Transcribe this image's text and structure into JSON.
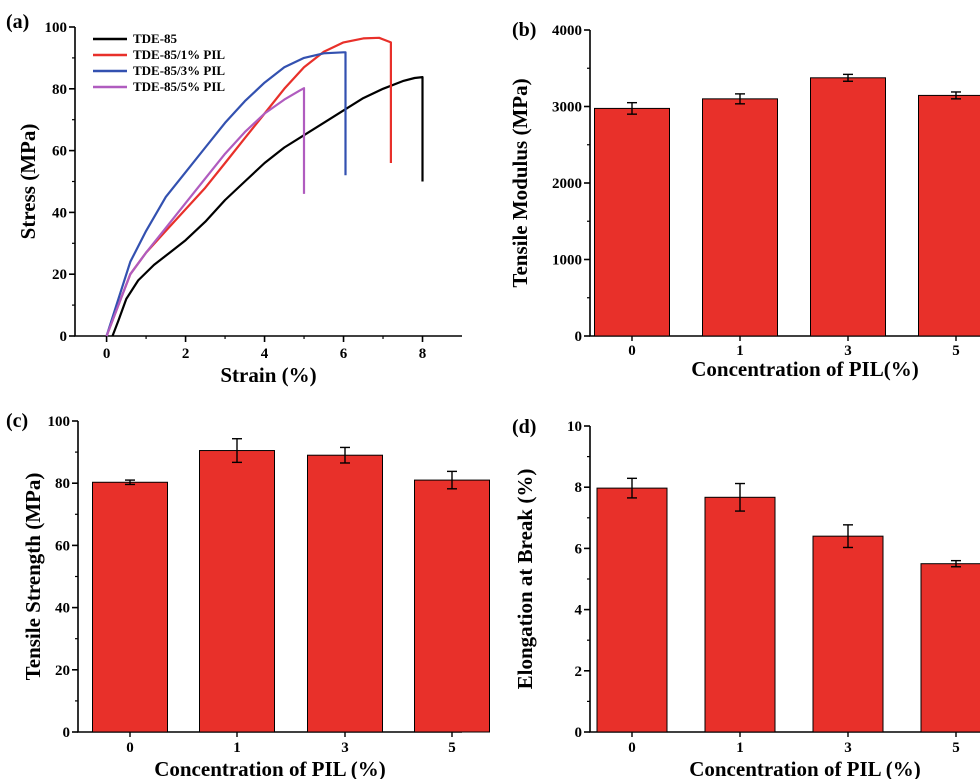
{
  "chart_data": [
    {
      "panel": "(a)",
      "type": "line",
      "xlabel": "Strain (%)",
      "ylabel": "Stress (MPa)",
      "xlim": [
        -0.8,
        9
      ],
      "ylim": [
        0,
        100
      ],
      "xticks": [
        0,
        2,
        4,
        6,
        8
      ],
      "yticks": [
        0,
        20,
        40,
        60,
        80,
        100
      ],
      "legend_position": "top-left",
      "series": [
        {
          "name": "TDE-85",
          "color": "#000000",
          "points": [
            [
              0.15,
              0
            ],
            [
              0.3,
              5
            ],
            [
              0.5,
              12
            ],
            [
              0.8,
              18
            ],
            [
              1.2,
              23
            ],
            [
              1.6,
              27
            ],
            [
              2,
              31
            ],
            [
              2.5,
              37
            ],
            [
              3,
              44
            ],
            [
              3.5,
              50
            ],
            [
              4,
              56
            ],
            [
              4.5,
              61
            ],
            [
              5,
              65
            ],
            [
              5.5,
              69
            ],
            [
              6,
              73
            ],
            [
              6.5,
              77
            ],
            [
              7,
              80
            ],
            [
              7.5,
              82.5
            ],
            [
              7.8,
              83.5
            ],
            [
              8,
              83.8
            ],
            [
              8,
              50
            ]
          ]
        },
        {
          "name": "TDE-85/1% PIL",
          "color": "#e8302a",
          "points": [
            [
              0,
              0
            ],
            [
              0.3,
              10
            ],
            [
              0.6,
              20
            ],
            [
              1,
              27
            ],
            [
              1.5,
              34
            ],
            [
              2,
              41
            ],
            [
              2.5,
              48
            ],
            [
              3,
              56
            ],
            [
              3.5,
              64
            ],
            [
              4,
              72
            ],
            [
              4.5,
              80
            ],
            [
              5,
              87
            ],
            [
              5.5,
              92
            ],
            [
              6,
              95
            ],
            [
              6.5,
              96.3
            ],
            [
              6.9,
              96.5
            ],
            [
              7.1,
              95.5
            ],
            [
              7.2,
              95
            ],
            [
              7.2,
              56
            ]
          ]
        },
        {
          "name": "TDE-85/3% PIL",
          "color": "#3351b0",
          "points": [
            [
              0,
              0
            ],
            [
              0.3,
              12
            ],
            [
              0.6,
              24
            ],
            [
              1,
              34
            ],
            [
              1.5,
              45
            ],
            [
              2,
              53
            ],
            [
              2.5,
              61
            ],
            [
              3,
              69
            ],
            [
              3.5,
              76
            ],
            [
              4,
              82
            ],
            [
              4.5,
              87
            ],
            [
              5,
              90
            ],
            [
              5.5,
              91.5
            ],
            [
              6,
              91.8
            ],
            [
              6.05,
              91.8
            ],
            [
              6.05,
              52
            ]
          ]
        },
        {
          "name": "TDE-85/5% PIL",
          "color": "#b05cbf",
          "points": [
            [
              0,
              0
            ],
            [
              0.3,
              10
            ],
            [
              0.6,
              20
            ],
            [
              1,
              27
            ],
            [
              1.5,
              35
            ],
            [
              2,
              43
            ],
            [
              2.5,
              51
            ],
            [
              3,
              59
            ],
            [
              3.5,
              66
            ],
            [
              4,
              72
            ],
            [
              4.5,
              76.5
            ],
            [
              4.9,
              79.5
            ],
            [
              5,
              80.2
            ],
            [
              5,
              46
            ]
          ]
        }
      ]
    },
    {
      "panel": "(b)",
      "type": "bar",
      "xlabel": "Concentration of PIL(%)",
      "ylabel": "Tensile Modulus (MPa)",
      "categories": [
        "0",
        "1",
        "3",
        "5"
      ],
      "values": [
        2975,
        3100,
        3375,
        3145
      ],
      "errors": [
        75,
        65,
        45,
        45
      ],
      "ylim": [
        0,
        4000
      ],
      "yticks": [
        0,
        1000,
        2000,
        3000,
        4000
      ],
      "bar_color": "#e8302a"
    },
    {
      "panel": "(c)",
      "type": "bar",
      "xlabel": "Concentration of PIL (%)",
      "ylabel": "Tensile Strength (MPa)",
      "categories": [
        "0",
        "1",
        "3",
        "5"
      ],
      "values": [
        80.3,
        90.5,
        89,
        81
      ],
      "errors": [
        0.7,
        3.8,
        2.5,
        2.8
      ],
      "ylim": [
        0,
        100
      ],
      "yticks": [
        0,
        20,
        40,
        60,
        80,
        100
      ],
      "bar_color": "#e8302a"
    },
    {
      "panel": "(d)",
      "type": "bar",
      "xlabel": "Concentration of PIL (%)",
      "ylabel": "Elongation at Break (%)",
      "categories": [
        "0",
        "1",
        "3",
        "5"
      ],
      "values": [
        7.97,
        7.67,
        6.4,
        5.5
      ],
      "errors": [
        0.32,
        0.45,
        0.37,
        0.1
      ],
      "ylim": [
        0,
        10
      ],
      "yticks": [
        0,
        2,
        4,
        6,
        8,
        10
      ],
      "bar_color": "#e8302a"
    }
  ]
}
